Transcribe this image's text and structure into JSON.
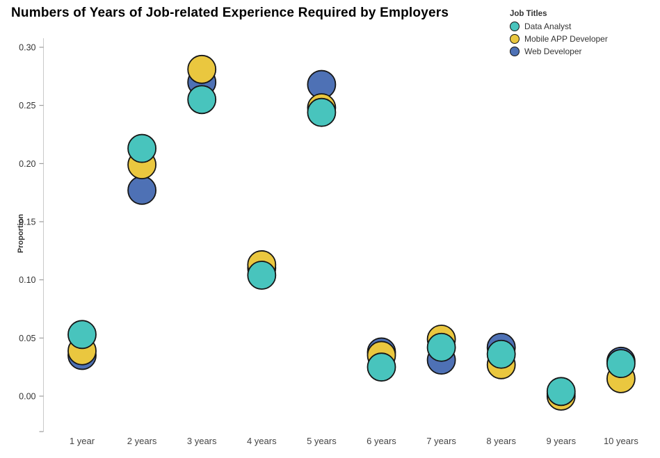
{
  "title": "Numbers of Years of Job-related Experience Required by Employers",
  "legend": {
    "title": "Job Titles",
    "items": [
      {
        "label": "Data Analyst",
        "color": "#48c4bd"
      },
      {
        "label": "Mobile APP Developer",
        "color": "#eac73f"
      },
      {
        "label": "Web Developer",
        "color": "#4e71b5"
      }
    ]
  },
  "chart_data": {
    "type": "scatter",
    "title": "Numbers of Years of Job-related Experience Required by Employers",
    "xlabel": "",
    "ylabel": "Proportion",
    "categories": [
      "1 year",
      "2 years",
      "3 years",
      "4 years",
      "5 years",
      "6 years",
      "7 years",
      "8 years",
      "9 years",
      "10 years"
    ],
    "series": [
      {
        "name": "Web Developer",
        "color": "#4e71b5",
        "values": [
          0.035,
          0.177,
          0.27,
          0.11,
          0.268,
          0.038,
          0.031,
          0.042,
          0.002,
          0.03
        ]
      },
      {
        "name": "Mobile APP Developer",
        "color": "#eac73f",
        "values": [
          0.039,
          0.199,
          0.281,
          0.113,
          0.248,
          0.035,
          0.049,
          0.027,
          0.0,
          0.015
        ]
      },
      {
        "name": "Data Analyst",
        "color": "#48c4bd",
        "values": [
          0.053,
          0.213,
          0.255,
          0.104,
          0.244,
          0.025,
          0.042,
          0.036,
          0.004,
          0.028
        ]
      }
    ],
    "draw_order_note": "series array is bottom-to-top draw order; legend shows Data Analyst, Mobile APP Developer, Web Developer",
    "yticks": [
      0.0,
      0.05,
      0.1,
      0.15,
      0.2,
      0.25,
      0.3
    ],
    "ylim": [
      -0.03,
      0.305
    ],
    "grid": false,
    "legend_position": "top-right",
    "marker_radius": 20,
    "marker_stroke": "#161616",
    "axis_color": "#c9c9c9"
  }
}
